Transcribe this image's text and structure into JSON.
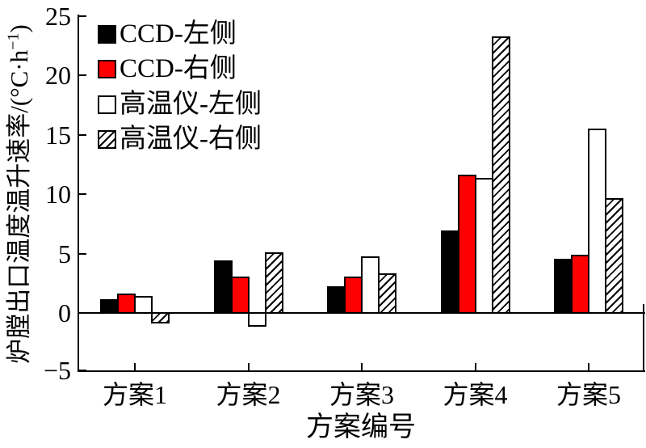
{
  "axes": {
    "y_label": {
      "text": "炉膛出口温度温升速率/(°C·h",
      "sup": "−1",
      "suffix": ")"
    },
    "x_label": "方案编号",
    "y_ticks": [
      25,
      20,
      15,
      10,
      5,
      0,
      -5
    ],
    "y_tick_labels": [
      "25",
      "20",
      "15",
      "10",
      "5",
      "0",
      "−5"
    ],
    "x_tick_labels": [
      "方案1",
      "方案2",
      "方案3",
      "方案4",
      "方案5"
    ]
  },
  "legend": {
    "items": [
      {
        "label": "CCD-左侧",
        "swatch": "black-filled"
      },
      {
        "label": "CCD-右侧",
        "swatch": "red-filled"
      },
      {
        "label": "高温仪-左侧",
        "swatch": "white-open"
      },
      {
        "label": "高温仪-右侧",
        "swatch": "hatched"
      }
    ]
  },
  "colors": {
    "bar_black": "#000000",
    "bar_red": "#ff0000",
    "bar_white": "#ffffff",
    "outline": "#000000",
    "background": "#ffffff"
  },
  "chart_data": {
    "type": "bar",
    "categories": [
      "方案1",
      "方案2",
      "方案3",
      "方案4",
      "方案5"
    ],
    "series": [
      {
        "name": "CCD-左侧",
        "style": "black",
        "values": [
          1.2,
          4.5,
          2.3,
          7.0,
          4.6
        ]
      },
      {
        "name": "CCD-右侧",
        "style": "red",
        "values": [
          1.7,
          3.1,
          3.1,
          11.7,
          5.0
        ]
      },
      {
        "name": "高温仪-左侧",
        "style": "white",
        "values": [
          1.5,
          -1.1,
          4.8,
          11.4,
          15.6
        ]
      },
      {
        "name": "高温仪-右侧",
        "style": "hatch",
        "values": [
          -0.8,
          5.2,
          3.4,
          23.3,
          9.7
        ]
      }
    ],
    "title": "",
    "xlabel": "方案编号",
    "ylabel": "炉膛出口温度温升速率/(°C·h⁻¹)",
    "ylim": [
      -5,
      25
    ],
    "ytick_step": 5,
    "grid": false,
    "zero_line": true,
    "legend_position": "upper-left-inside"
  }
}
